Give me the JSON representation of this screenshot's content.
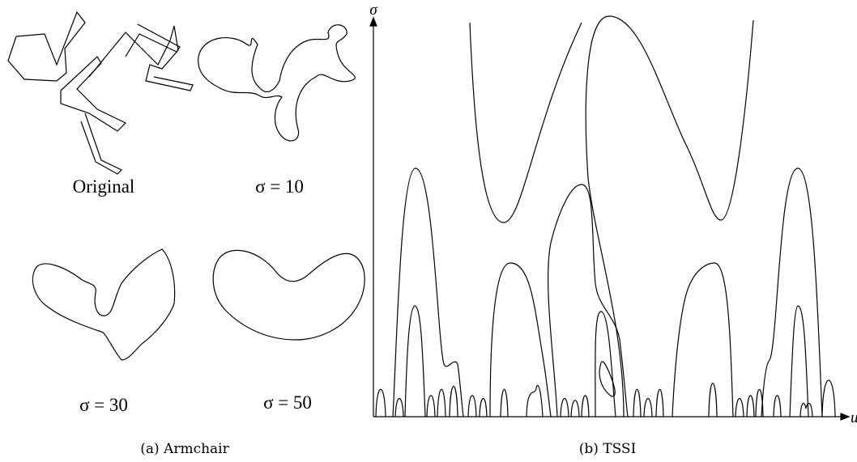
{
  "panel_a": {
    "caption": "(a) Armchair",
    "shapes": [
      {
        "label": "Original"
      },
      {
        "label": "σ = 10"
      },
      {
        "label": "σ = 30"
      },
      {
        "label": "σ = 50"
      }
    ]
  },
  "panel_b": {
    "caption": "(b) TSSI",
    "y_axis_label": "σ",
    "x_axis_label": "u"
  }
}
